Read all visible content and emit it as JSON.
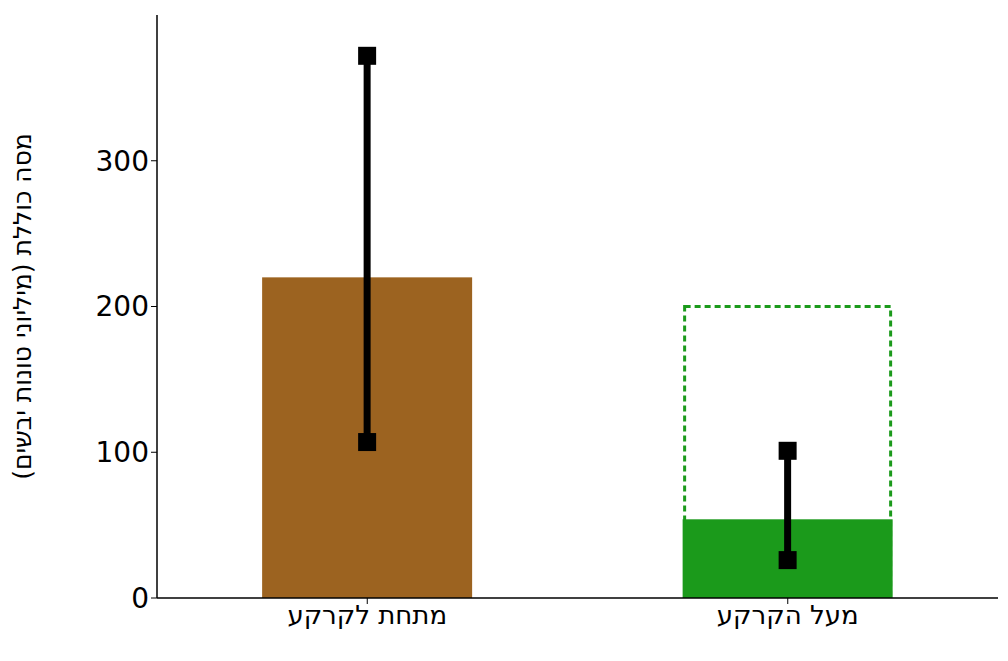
{
  "chart_data": {
    "type": "bar",
    "y_label": "מסה כוללת (מיליוני טונות יבשים)",
    "categories": [
      "מתחת לקרקע",
      "מעל הקרקע"
    ],
    "values": [
      220,
      54
    ],
    "colors": [
      "#9c6320",
      "#1b9a1b"
    ],
    "error_low": [
      107,
      26
    ],
    "error_high": [
      372,
      101
    ],
    "outline_values": [
      null,
      200
    ],
    "ylim": [
      0,
      400
    ],
    "yticks": [
      0,
      100,
      200,
      300
    ],
    "grid": false
  }
}
